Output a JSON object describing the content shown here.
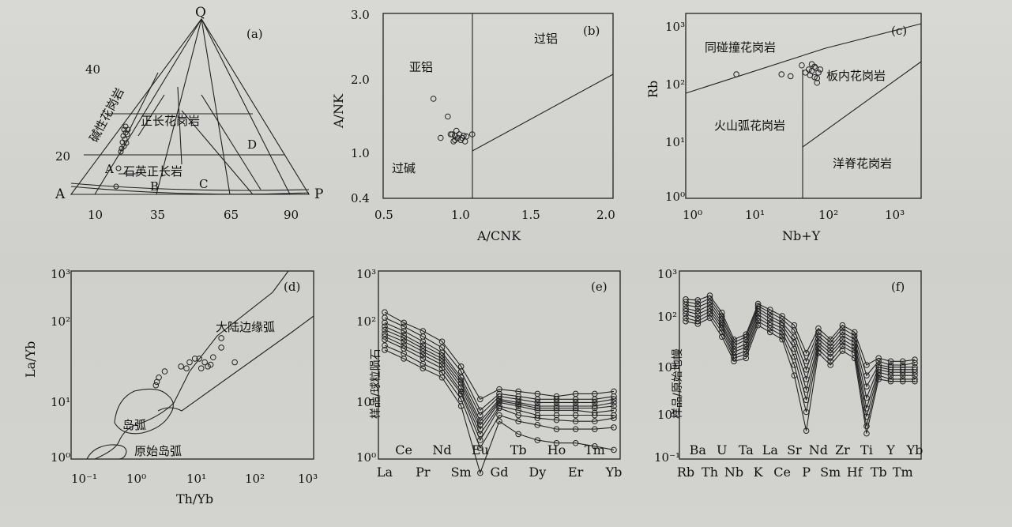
{
  "chart_data": [
    {
      "id": "a",
      "type": "scatter",
      "panel_label": "(a)",
      "apex_labels": [
        "Q",
        "A",
        "P"
      ],
      "tick_labels_axis": [
        "10",
        "35",
        "65",
        "90"
      ],
      "tick_labels_left": [
        "40",
        "20"
      ],
      "field_letters": [
        "A",
        "B",
        "C",
        "D"
      ],
      "field_labels": [
        "碱性花岗岩",
        "正长花岗岩",
        "石英正长岩"
      ],
      "point_count": 14
    },
    {
      "id": "b",
      "type": "scatter",
      "panel_label": "(b)",
      "xlabel": "A/CNK",
      "ylabel": "A/NK",
      "x_ticks": [
        "0.5",
        "1.0",
        "1.5",
        "2.0"
      ],
      "y_ticks": [
        "3.0",
        "2.0",
        "1.0",
        "0.4"
      ],
      "xlim": [
        0.5,
        2.1
      ],
      "ylim": [
        0.4,
        3.0
      ],
      "field_labels": [
        "亚铝",
        "过铝",
        "过碱"
      ],
      "x": [
        0.95,
        0.97,
        0.98,
        0.99,
        1.0,
        1.0,
        1.02,
        1.03,
        1.04,
        1.05,
        1.06,
        1.07,
        1.08,
        1.12,
        0.9,
        0.85,
        1.01
      ],
      "y": [
        1.55,
        1.3,
        1.3,
        1.2,
        1.22,
        1.28,
        1.25,
        1.3,
        1.22,
        1.25,
        1.28,
        1.2,
        1.27,
        1.3,
        1.25,
        1.8,
        1.35
      ]
    },
    {
      "id": "c",
      "type": "scatter",
      "panel_label": "(c)",
      "xlabel": "Nb+Y",
      "ylabel": "Rb",
      "scale": "log",
      "x_ticks": [
        "10⁰",
        "10¹",
        "10²",
        "10³"
      ],
      "y_ticks": [
        "10³",
        "10²",
        "10¹",
        "10⁰"
      ],
      "field_labels": [
        "同碰撞花岗岩",
        "板内花岗岩",
        "火山弧花岗岩",
        "洋脊花岗岩"
      ],
      "x": [
        5,
        21,
        28,
        40,
        45,
        50,
        52,
        55,
        60,
        62,
        65,
        68,
        72,
        55,
        60,
        65
      ],
      "y": [
        140,
        140,
        130,
        200,
        150,
        170,
        135,
        160,
        125,
        180,
        100,
        150,
        170,
        210,
        190,
        120
      ]
    },
    {
      "id": "d",
      "type": "scatter",
      "panel_label": "(d)",
      "xlabel": "Th/Yb",
      "ylabel": "La/Yb",
      "scale": "log",
      "x_ticks": [
        "10⁻¹",
        "10⁰",
        "10¹",
        "10²",
        "10³"
      ],
      "y_ticks": [
        "10³",
        "10²",
        "10¹",
        "10⁰"
      ],
      "field_labels": [
        "大陆边缘弧",
        "岛弧",
        "原始岛弧"
      ],
      "x": [
        2.5,
        2.6,
        2.8,
        3.5,
        6.5,
        8,
        9,
        11,
        13,
        14,
        16,
        18,
        20,
        22,
        30,
        30,
        50
      ],
      "y": [
        15,
        17,
        20,
        25,
        30,
        28,
        35,
        40,
        40,
        28,
        35,
        30,
        32,
        42,
        85,
        60,
        35
      ]
    },
    {
      "id": "e",
      "type": "line",
      "panel_label": "(e)",
      "ylabel": "样品/球粒陨石",
      "scale_y": "log",
      "categories": [
        "La",
        "Ce",
        "Pr",
        "Nd",
        "Sm",
        "Eu",
        "Gd",
        "Tb",
        "Dy",
        "Ho",
        "Er",
        "Tm",
        "Yb"
      ],
      "x_labels_top": [
        "Ce",
        "Nd",
        "Eu",
        "Tb",
        "Ho",
        "Tm"
      ],
      "x_labels_bottom": [
        "La",
        "Pr",
        "Sm",
        "Gd",
        "Dy",
        "Er",
        "Yb"
      ],
      "y_ticks": [
        "10³",
        "10²",
        "10¹",
        "10⁰"
      ],
      "series": [
        {
          "values": [
            220,
            150,
            110,
            75,
            30,
            9,
            13,
            12,
            11,
            10,
            11,
            11,
            12
          ]
        },
        {
          "values": [
            180,
            130,
            90,
            60,
            25,
            6,
            11,
            10,
            9,
            9,
            9,
            9,
            10
          ]
        },
        {
          "values": [
            150,
            110,
            75,
            50,
            20,
            5,
            10,
            9,
            8,
            8,
            8,
            8,
            9
          ]
        },
        {
          "values": [
            130,
            95,
            65,
            45,
            18,
            4,
            9,
            8,
            7,
            7,
            7,
            7,
            8
          ]
        },
        {
          "values": [
            115,
            85,
            58,
            40,
            16,
            3.5,
            8.5,
            7.5,
            6.5,
            6.5,
            6.5,
            6.5,
            7
          ]
        },
        {
          "values": [
            100,
            75,
            52,
            36,
            14,
            3,
            8,
            7,
            6,
            6,
            6,
            5.5,
            6
          ]
        },
        {
          "values": [
            90,
            65,
            46,
            32,
            12,
            2.5,
            7,
            6,
            5,
            5,
            5,
            5,
            5
          ]
        },
        {
          "values": [
            80,
            58,
            40,
            28,
            11,
            2,
            6.5,
            5,
            4.5,
            4.2,
            4,
            4,
            4.5
          ]
        },
        {
          "values": [
            65,
            48,
            33,
            24,
            9,
            1.5,
            5,
            4,
            3.5,
            3,
            3,
            3,
            3.2
          ]
        },
        {
          "values": [
            55,
            40,
            28,
            20,
            7,
            0.6,
            4,
            2.5,
            2,
            1.8,
            1.8,
            1.6,
            1.4
          ]
        }
      ]
    },
    {
      "id": "f",
      "type": "line",
      "panel_label": "(f)",
      "ylabel": "样品/原始地幔",
      "scale_y": "log",
      "categories": [
        "Rb",
        "Ba",
        "Th",
        "U",
        "Nb",
        "Ta",
        "K",
        "La",
        "Ce",
        "Sr",
        "P",
        "Nd",
        "Sm",
        "Zr",
        "Hf",
        "Ti",
        "Tb",
        "Y",
        "Tm",
        "Yb"
      ],
      "x_labels_top": [
        "Ba",
        "U",
        "Ta",
        "La",
        "Sr",
        "Nd",
        "Zr",
        "Ti",
        "Y",
        "Yb"
      ],
      "x_labels_bottom": [
        "Rb",
        "Th",
        "Nb",
        "K",
        "Ce",
        "P",
        "Sm",
        "Hf",
        "Tb",
        "Tm"
      ],
      "y_ticks": [
        "10³",
        "10²",
        "10¹",
        "10⁰",
        "10⁻¹"
      ],
      "series": [
        {
          "values": [
            250,
            240,
            300,
            130,
            35,
            45,
            200,
            150,
            110,
            70,
            18,
            60,
            35,
            70,
            50,
            10,
            14,
            12,
            12,
            13
          ]
        },
        {
          "values": [
            220,
            200,
            260,
            110,
            30,
            40,
            180,
            130,
            95,
            55,
            12,
            50,
            30,
            60,
            42,
            6,
            12,
            10,
            10,
            11
          ]
        },
        {
          "values": [
            190,
            170,
            220,
            95,
            26,
            34,
            160,
            110,
            80,
            40,
            8,
            42,
            25,
            50,
            35,
            3.5,
            10,
            9,
            9,
            9
          ]
        },
        {
          "values": [
            160,
            140,
            190,
            80,
            22,
            28,
            140,
            95,
            70,
            30,
            5,
            36,
            21,
            42,
            30,
            2,
            9,
            8,
            8,
            8
          ]
        },
        {
          "values": [
            140,
            120,
            160,
            70,
            19,
            24,
            120,
            80,
            60,
            22,
            3,
            30,
            18,
            35,
            25,
            1.2,
            8,
            7,
            7,
            7
          ]
        },
        {
          "values": [
            120,
            100,
            140,
            60,
            16,
            20,
            100,
            70,
            50,
            15,
            1.8,
            26,
            15,
            30,
            21,
            0.8,
            7,
            6,
            6,
            6
          ]
        },
        {
          "values": [
            100,
            85,
            120,
            50,
            14,
            17,
            85,
            60,
            42,
            10,
            1,
            22,
            12,
            25,
            18,
            0.5,
            6,
            5,
            5,
            5
          ]
        },
        {
          "values": [
            85,
            75,
            100,
            40,
            12,
            14,
            70,
            50,
            35,
            6,
            0.4,
            18,
            10,
            20,
            14,
            0.35,
            5,
            4.5,
            4.5,
            4.5
          ]
        }
      ]
    }
  ]
}
